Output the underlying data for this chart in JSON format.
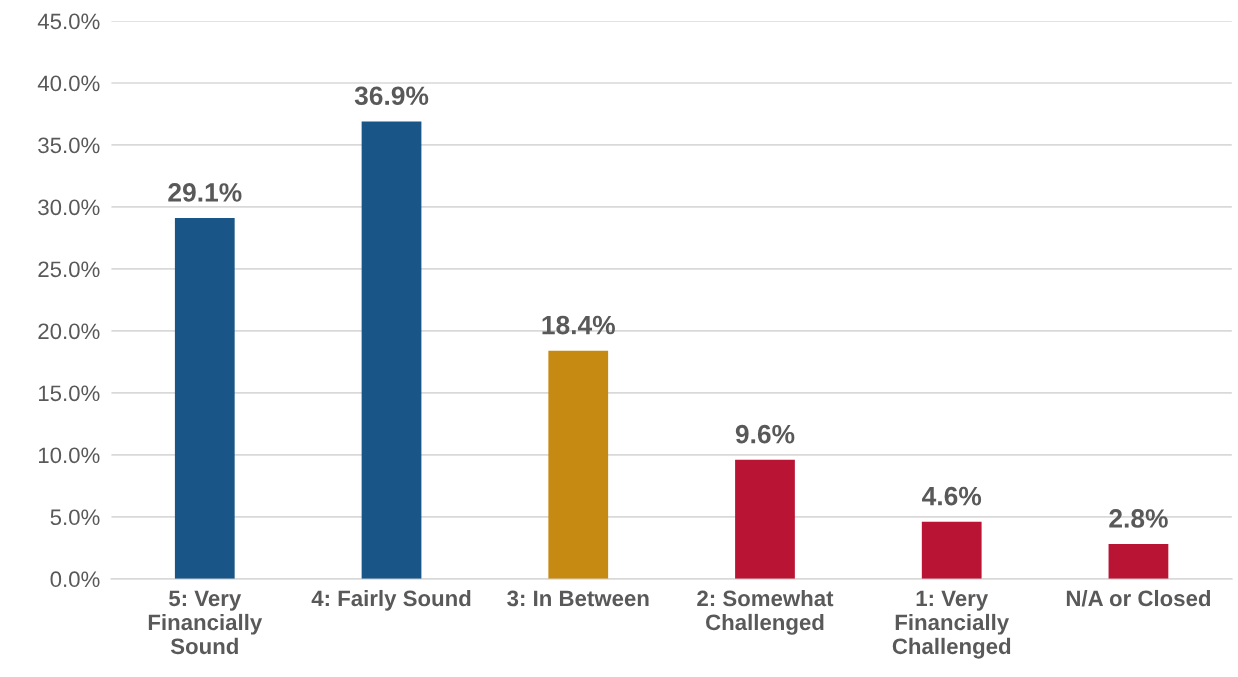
{
  "chart_data": {
    "type": "bar",
    "categories": [
      "5: Very\nFinancially\nSound",
      "4: Fairly Sound",
      "3: In Between",
      "2: Somewhat\nChallenged",
      "1: Very\nFinancially\nChallenged",
      "N/A or Closed"
    ],
    "values": [
      29.1,
      36.9,
      18.4,
      9.6,
      4.6,
      2.8
    ],
    "colors": [
      "#1a5587",
      "#1a5587",
      "#c68a12",
      "#b91434",
      "#b91434",
      "#b91434"
    ],
    "value_labels": [
      "29.1%",
      "36.9%",
      "18.4%",
      "9.6%",
      "4.6%",
      "2.8%"
    ],
    "ylim": [
      0,
      45
    ],
    "yticks": [
      {
        "value": 0,
        "label": "0.0%"
      },
      {
        "value": 5,
        "label": "5.0%"
      },
      {
        "value": 10,
        "label": "10.0%"
      },
      {
        "value": 15,
        "label": "15.0%"
      },
      {
        "value": 20,
        "label": "20.0%"
      },
      {
        "value": 25,
        "label": "25.0%"
      },
      {
        "value": 30,
        "label": "30.0%"
      },
      {
        "value": 35,
        "label": "35.0%"
      },
      {
        "value": 40,
        "label": "40.0%"
      },
      {
        "value": 45,
        "label": "45.0%"
      }
    ],
    "grid": "y",
    "legend": false
  }
}
